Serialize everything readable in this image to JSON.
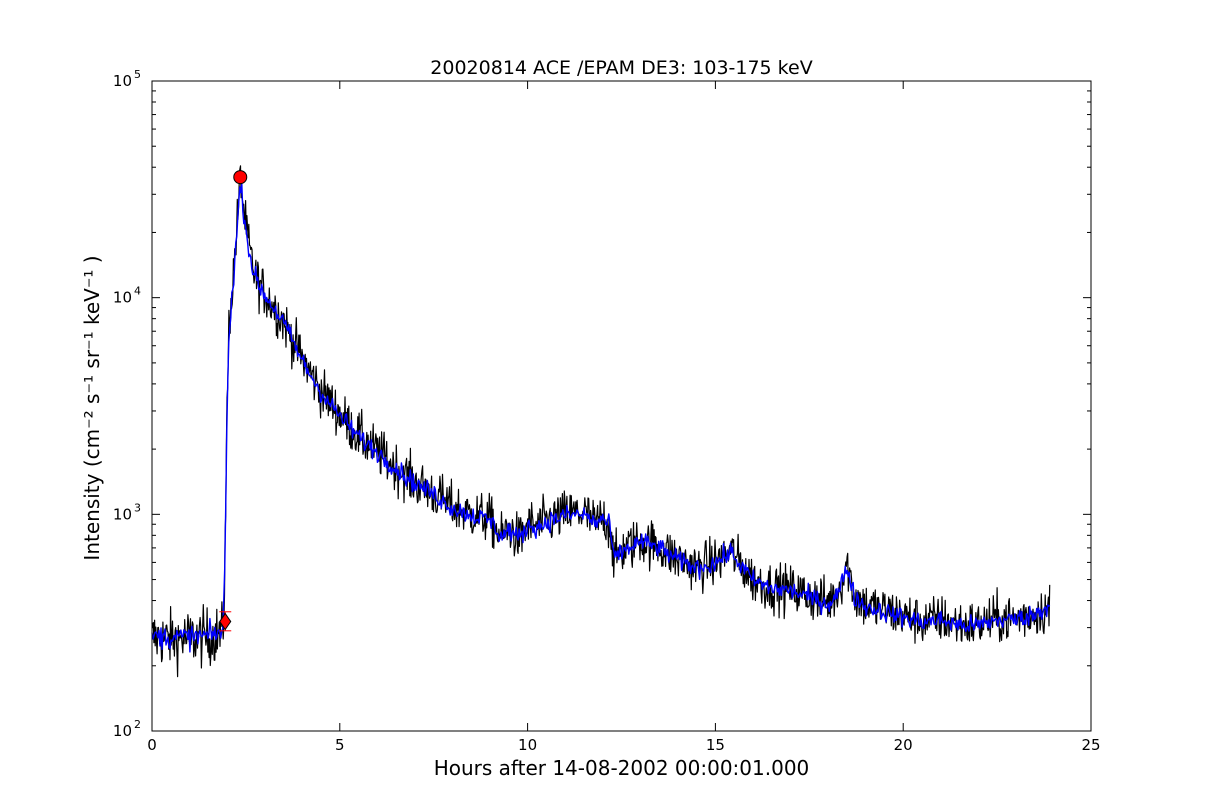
{
  "chart_data": {
    "type": "line",
    "title": "20020814 ACE /EPAM DE3: 103-175 keV",
    "xlabel": "Hours after 14-08-2002 00:00:01.000",
    "ylabel": "Intensity (cm⁻² s⁻¹ sr⁻¹ keV⁻¹ )",
    "xlim": [
      0,
      25
    ],
    "ylim": [
      100,
      100000
    ],
    "yscale": "log",
    "grid": false,
    "x_ticks": [
      0,
      5,
      10,
      15,
      20,
      25
    ],
    "x_tick_labels": [
      "0",
      "5",
      "10",
      "15",
      "20",
      "25"
    ],
    "y_ticks": [
      100,
      1000,
      10000,
      100000
    ],
    "y_tick_base": "10",
    "y_tick_exponents": [
      "2",
      "3",
      "4",
      "5"
    ],
    "colors": {
      "raw": "#000000",
      "smoothed": "#0000ff",
      "marker": "#ff0000"
    },
    "series": [
      {
        "role": "raw",
        "x": [
          0,
          0.5,
          1.0,
          1.5,
          1.9,
          1.95,
          2.0,
          2.05,
          2.1,
          2.15,
          2.2,
          2.3,
          2.35,
          2.4,
          2.5,
          2.6,
          2.7,
          2.8,
          3.0,
          3.5,
          4.0,
          4.5,
          5.0,
          5.5,
          6.0,
          6.5,
          7.0,
          7.5,
          8.0,
          8.5,
          9.0,
          9.3,
          9.5,
          9.8,
          10.0,
          10.3,
          10.5,
          11.0,
          11.5,
          11.8,
          12.0,
          12.2,
          12.3,
          12.5,
          13.0,
          13.5,
          14.0,
          14.5,
          15.0,
          15.4,
          15.7,
          16.0,
          16.5,
          17.0,
          17.5,
          18.0,
          18.3,
          18.5,
          18.7,
          19.0,
          19.5,
          20.0,
          20.5,
          21.0,
          21.5,
          22.0,
          22.5,
          23.0,
          23.5,
          23.9
        ],
        "y": [
          270,
          265,
          268,
          272,
          285,
          800,
          3200,
          7500,
          9500,
          11500,
          15500,
          26000,
          36000,
          30000,
          21000,
          16500,
          13500,
          12000,
          10500,
          7800,
          5200,
          3700,
          2900,
          2300,
          1950,
          1650,
          1400,
          1250,
          1080,
          1000,
          950,
          780,
          860,
          760,
          900,
          880,
          930,
          1000,
          1020,
          900,
          970,
          880,
          610,
          680,
          760,
          710,
          620,
          570,
          600,
          680,
          580,
          500,
          460,
          450,
          420,
          390,
          450,
          600,
          420,
          380,
          360,
          340,
          320,
          330,
          310,
          310,
          330,
          330,
          350,
          370
        ]
      },
      {
        "role": "smoothed",
        "x": [
          0,
          0.5,
          1.0,
          1.5,
          1.9,
          1.95,
          2.0,
          2.05,
          2.1,
          2.15,
          2.2,
          2.3,
          2.35,
          2.4,
          2.5,
          2.6,
          2.7,
          2.8,
          3.0,
          3.5,
          4.0,
          4.5,
          5.0,
          5.5,
          6.0,
          6.5,
          7.0,
          7.5,
          8.0,
          8.5,
          9.0,
          9.3,
          9.5,
          9.8,
          10.0,
          10.3,
          10.5,
          11.0,
          11.5,
          11.8,
          12.0,
          12.2,
          12.3,
          12.5,
          13.0,
          13.5,
          14.0,
          14.5,
          15.0,
          15.4,
          15.7,
          16.0,
          16.5,
          17.0,
          17.5,
          18.0,
          18.3,
          18.5,
          18.7,
          19.0,
          19.5,
          20.0,
          20.5,
          21.0,
          21.5,
          22.0,
          22.5,
          23.0,
          23.5,
          23.9
        ],
        "y": [
          275,
          270,
          272,
          275,
          290,
          750,
          3000,
          7000,
          9000,
          11000,
          14500,
          25000,
          34000,
          29000,
          20500,
          16000,
          13200,
          11800,
          10300,
          7700,
          5100,
          3650,
          2850,
          2280,
          1930,
          1630,
          1390,
          1240,
          1070,
          990,
          940,
          790,
          850,
          770,
          890,
          870,
          920,
          990,
          1000,
          910,
          960,
          870,
          620,
          670,
          750,
          700,
          615,
          565,
          595,
          670,
          575,
          495,
          455,
          445,
          415,
          385,
          440,
          580,
          415,
          375,
          355,
          335,
          318,
          325,
          308,
          308,
          325,
          328,
          345,
          380
        ]
      }
    ],
    "markers": [
      {
        "shape": "circle",
        "x": 2.35,
        "y": 36000
      },
      {
        "shape": "diamond",
        "x": 1.95,
        "y": 320,
        "error_low": 290,
        "error_high": 355
      }
    ]
  }
}
